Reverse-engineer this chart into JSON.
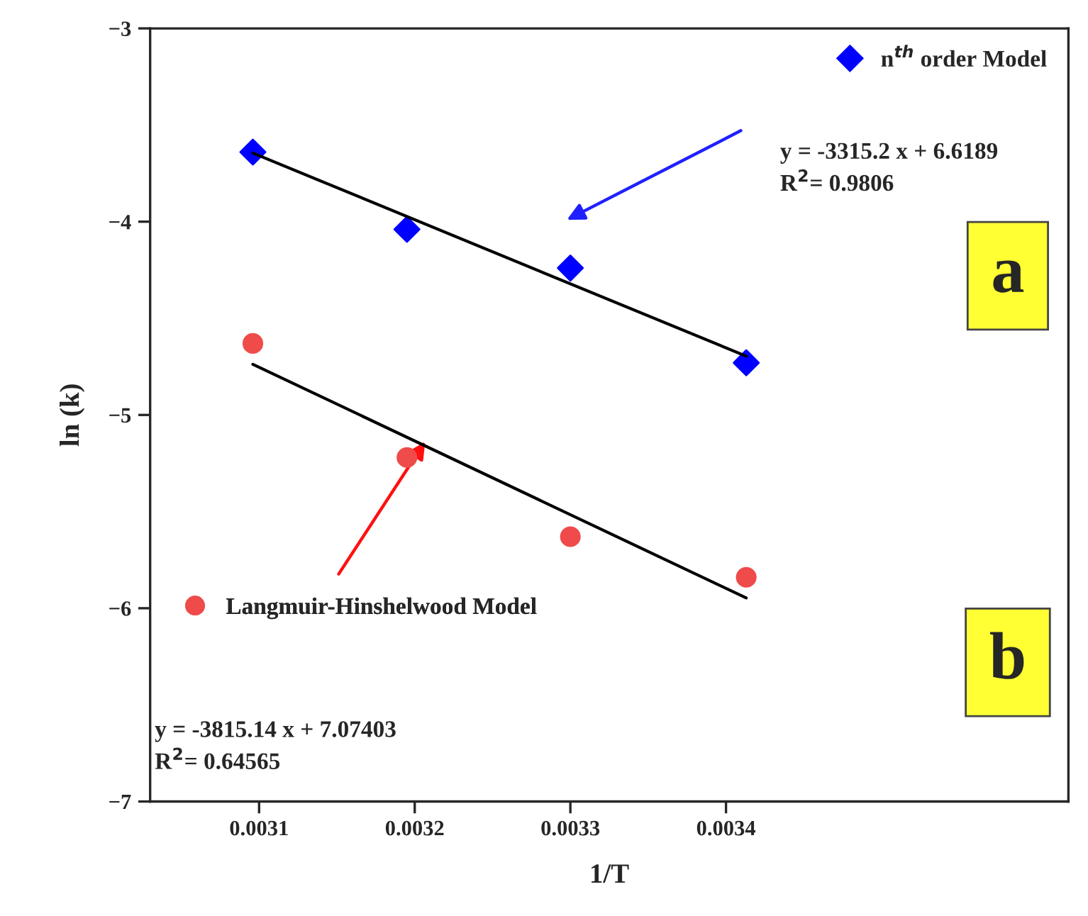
{
  "chart_data": {
    "type": "scatter",
    "xlabel": "1/T",
    "ylabel": "ln (k)",
    "xlim": [
      0.00303,
      0.00362
    ],
    "xticks": [
      {
        "value": 0.0031,
        "label": "0.0031"
      },
      {
        "value": 0.0032,
        "label": "0.0032"
      },
      {
        "value": 0.0033,
        "label": "0.0033"
      },
      {
        "value": 0.0034,
        "label": "0.0034"
      }
    ],
    "ylim": [
      -7,
      -3
    ],
    "yticks": [
      {
        "value": -7,
        "label": "−7"
      },
      {
        "value": -6,
        "label": "−6"
      },
      {
        "value": -5,
        "label": "−5"
      },
      {
        "value": -4,
        "label": "−4"
      },
      {
        "value": -3,
        "label": "−3"
      }
    ],
    "grid": false,
    "legend": "top right",
    "series": [
      {
        "name": "n$^{th}$ order Model",
        "marker": "diamond",
        "color": "#0000ff",
        "x": [
          0.003096,
          0.003195,
          0.0033,
          0.003413
        ],
        "values": [
          -3.64,
          -4.04,
          -4.24,
          -4.73
        ]
      },
      {
        "name": "Langmuir-Hinshelwood Model",
        "marker": "circle",
        "color": "#ef4b4b",
        "x": [
          0.003096,
          0.003195,
          0.0033,
          0.003413
        ],
        "values": [
          -4.63,
          -5.22,
          -5.63,
          -5.84
        ]
      },
      {
        "type": "line",
        "color": "#000000",
        "line_style": "solid",
        "marker": "none",
        "x": [
          0.003096,
          0.003413
        ],
        "values": [
          -3.645,
          -4.696
        ]
      },
      {
        "type": "line",
        "color": "#000000",
        "line_style": "solid",
        "marker": "none",
        "x": [
          0.003096,
          0.003413
        ],
        "values": [
          -4.738,
          -5.947
        ]
      }
    ],
    "annotations": [
      "y = -3315.2 x + 6.6189\nR$^{2}$= 0.9806",
      "a",
      "y = -3815.14 x + 7.07403\nR$^{2}$= 0.64565",
      "b"
    ]
  }
}
